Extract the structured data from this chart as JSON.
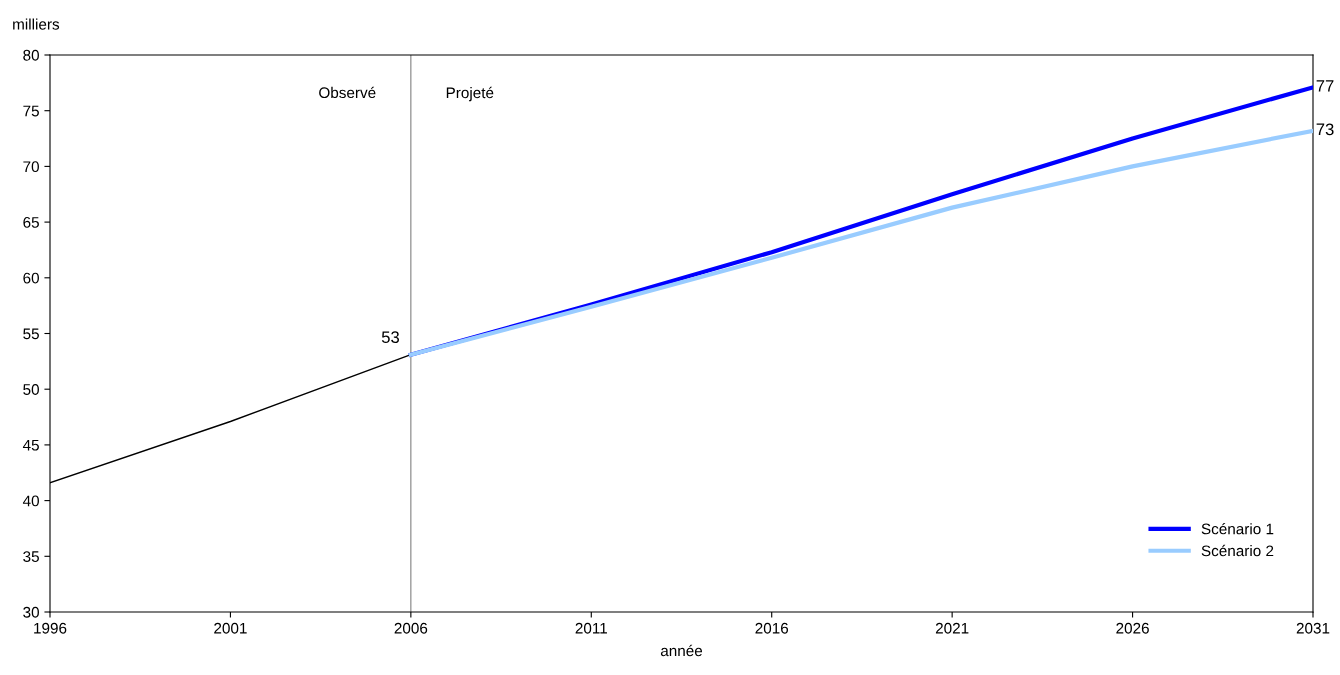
{
  "chart_data": {
    "type": "line",
    "ylabel": "milliers",
    "xlabel": "année",
    "series": [
      {
        "color": "#000000",
        "x": [
          1996,
          2001,
          2006
        ],
        "values": [
          41.6,
          47.1,
          53.1
        ],
        "value_labels": [
          null,
          null,
          "53"
        ]
      },
      {
        "name": "Scénario 1",
        "color": "#0000ff",
        "x": [
          2006,
          2011,
          2016,
          2021,
          2026,
          2031
        ],
        "values": [
          53.1,
          57.6,
          62.3,
          67.5,
          72.5,
          77.1
        ],
        "value_labels": [
          null,
          null,
          null,
          null,
          null,
          "77"
        ]
      },
      {
        "name": "Scénario 2",
        "color": "#99ccff",
        "x": [
          2006,
          2011,
          2016,
          2021,
          2026,
          2031
        ],
        "values": [
          53.1,
          57.4,
          61.8,
          66.3,
          70.0,
          73.2
        ],
        "value_labels": [
          null,
          null,
          null,
          null,
          null,
          "73"
        ]
      }
    ],
    "xlim": [
      1996,
      2031
    ],
    "xticks": [
      1996,
      2001,
      2006,
      2011,
      2016,
      2021,
      2026,
      2031
    ],
    "ylim": [
      30,
      80
    ],
    "yticks": [
      30,
      35,
      40,
      45,
      50,
      55,
      60,
      65,
      70,
      75,
      80
    ],
    "ref_lines": [
      {
        "axis": "x",
        "value": 2006,
        "color": "#808080"
      }
    ],
    "annotations": [
      "Observé",
      "Projeté"
    ],
    "legend": "bottom right",
    "grid": false,
    "marker": "none",
    "line_style": "solid"
  }
}
